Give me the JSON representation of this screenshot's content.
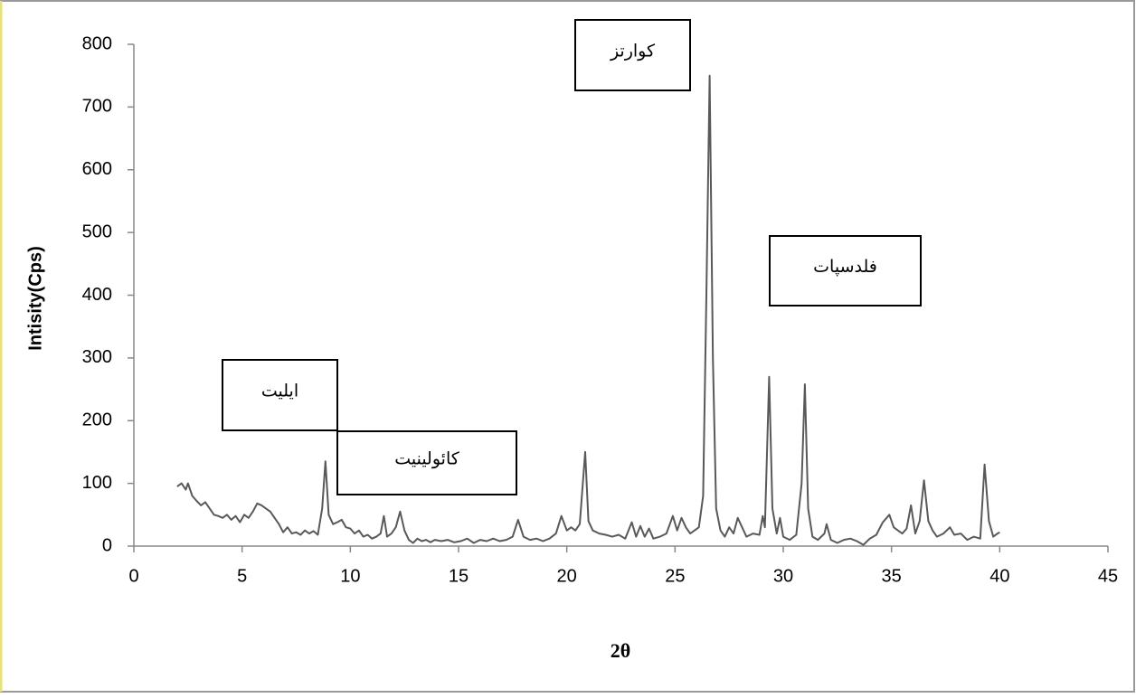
{
  "chart_data": {
    "type": "line",
    "x_label": "2θ",
    "y_label": "Intisity(Cps)",
    "color": "#595959",
    "xlim": [
      0,
      45
    ],
    "xticks": [
      0,
      5,
      10,
      15,
      20,
      25,
      30,
      35,
      40,
      45
    ],
    "ylim": [
      0,
      800
    ],
    "yticks": [
      0,
      100,
      200,
      300,
      400,
      500,
      600,
      700,
      800
    ],
    "annotations": [
      "کوارتز",
      "فلدسپات",
      "ایلیت",
      "کائولینیت"
    ],
    "x": [
      2.0,
      2.2,
      2.4,
      2.5,
      2.7,
      2.9,
      3.1,
      3.3,
      3.5,
      3.7,
      3.9,
      4.1,
      4.3,
      4.5,
      4.7,
      4.9,
      5.1,
      5.3,
      5.5,
      5.7,
      5.9,
      6.1,
      6.3,
      6.5,
      6.7,
      6.9,
      7.1,
      7.3,
      7.5,
      7.7,
      7.9,
      8.1,
      8.3,
      8.5,
      8.7,
      8.85,
      9.0,
      9.2,
      9.4,
      9.6,
      9.8,
      10.0,
      10.2,
      10.4,
      10.6,
      10.8,
      11.0,
      11.2,
      11.4,
      11.55,
      11.7,
      11.9,
      12.1,
      12.3,
      12.5,
      12.7,
      12.9,
      13.1,
      13.3,
      13.5,
      13.7,
      13.9,
      14.2,
      14.5,
      14.8,
      15.1,
      15.4,
      15.7,
      16.0,
      16.3,
      16.6,
      16.9,
      17.2,
      17.5,
      17.75,
      18.0,
      18.3,
      18.6,
      18.9,
      19.2,
      19.5,
      19.75,
      20.0,
      20.2,
      20.4,
      20.6,
      20.85,
      21.0,
      21.2,
      21.5,
      21.8,
      22.1,
      22.4,
      22.7,
      23.0,
      23.2,
      23.4,
      23.6,
      23.8,
      24.0,
      24.3,
      24.6,
      24.9,
      25.1,
      25.3,
      25.5,
      25.7,
      25.9,
      26.1,
      26.3,
      26.45,
      26.6,
      26.75,
      26.9,
      27.1,
      27.3,
      27.5,
      27.7,
      27.9,
      28.1,
      28.3,
      28.6,
      28.9,
      29.05,
      29.15,
      29.35,
      29.5,
      29.7,
      29.85,
      30.0,
      30.3,
      30.6,
      30.85,
      31.0,
      31.15,
      31.35,
      31.6,
      31.9,
      32.0,
      32.2,
      32.5,
      32.8,
      33.1,
      33.4,
      33.7,
      34.0,
      34.3,
      34.6,
      34.9,
      35.1,
      35.3,
      35.5,
      35.7,
      35.9,
      36.1,
      36.3,
      36.5,
      36.7,
      36.9,
      37.1,
      37.4,
      37.7,
      37.9,
      38.2,
      38.5,
      38.8,
      39.1,
      39.3,
      39.5,
      39.7,
      39.9,
      40.0
    ],
    "values": [
      95,
      100,
      90,
      100,
      80,
      72,
      65,
      70,
      60,
      50,
      48,
      45,
      50,
      42,
      48,
      38,
      50,
      45,
      55,
      68,
      65,
      60,
      55,
      45,
      35,
      22,
      30,
      20,
      22,
      18,
      25,
      20,
      24,
      18,
      60,
      135,
      50,
      35,
      38,
      42,
      30,
      28,
      20,
      25,
      15,
      18,
      12,
      15,
      20,
      48,
      15,
      20,
      30,
      55,
      25,
      10,
      5,
      12,
      8,
      10,
      6,
      10,
      8,
      10,
      6,
      8,
      12,
      5,
      10,
      8,
      12,
      8,
      10,
      15,
      42,
      15,
      10,
      12,
      8,
      12,
      20,
      48,
      25,
      30,
      25,
      35,
      150,
      40,
      25,
      20,
      18,
      15,
      18,
      12,
      38,
      15,
      32,
      15,
      28,
      12,
      15,
      20,
      48,
      25,
      45,
      30,
      20,
      25,
      30,
      80,
      400,
      750,
      300,
      60,
      25,
      15,
      30,
      20,
      45,
      30,
      15,
      20,
      18,
      48,
      30,
      270,
      60,
      20,
      45,
      15,
      10,
      18,
      100,
      258,
      60,
      15,
      10,
      20,
      35,
      10,
      5,
      10,
      12,
      8,
      2,
      12,
      18,
      38,
      50,
      30,
      25,
      20,
      28,
      65,
      20,
      40,
      105,
      40,
      25,
      15,
      20,
      30,
      18,
      20,
      10,
      15,
      12,
      130,
      40,
      15,
      20,
      22
    ]
  }
}
